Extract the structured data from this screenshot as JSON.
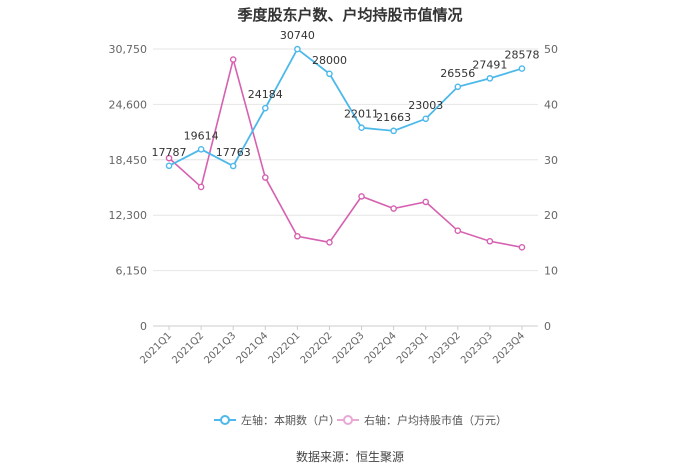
{
  "chart_data": {
    "type": "line",
    "title": "季度股东户数、户均持股市值情况",
    "categories": [
      "2021Q1",
      "2021Q2",
      "2021Q3",
      "2021Q4",
      "2022Q1",
      "2022Q2",
      "2022Q3",
      "2022Q4",
      "2023Q1",
      "2023Q2",
      "2023Q3",
      "2023Q4"
    ],
    "left_axis": {
      "ticks": [
        "0",
        "6,150",
        "12,300",
        "18,450",
        "24,600",
        "30,750"
      ],
      "range": [
        0,
        30750
      ]
    },
    "right_axis": {
      "ticks": [
        "0",
        "10",
        "20",
        "30",
        "40",
        "50"
      ],
      "range": [
        0,
        50
      ]
    },
    "series": [
      {
        "name": "左轴：本期数（户）",
        "axis": "left",
        "color": "#4db8ea",
        "values": [
          17787,
          19614,
          17763,
          24184,
          30740,
          28000,
          22011,
          21663,
          23003,
          26556,
          27491,
          28578
        ],
        "labels": [
          "17787",
          "19614",
          "17763",
          "24184",
          "30740",
          "28000",
          "22011",
          "21663",
          "23003",
          "26556",
          "27491",
          "28578"
        ]
      },
      {
        "name": "右轴：户均持股市值（万元）",
        "axis": "right",
        "color": "#d661b0",
        "values": [
          30.3,
          25.1,
          48.1,
          26.8,
          16.2,
          15.1,
          23.4,
          21.2,
          22.4,
          17.2,
          15.3,
          14.2
        ]
      }
    ],
    "grid": true,
    "legend_position": "bottom"
  },
  "footer": {
    "source": "数据来源：恒生聚源"
  }
}
